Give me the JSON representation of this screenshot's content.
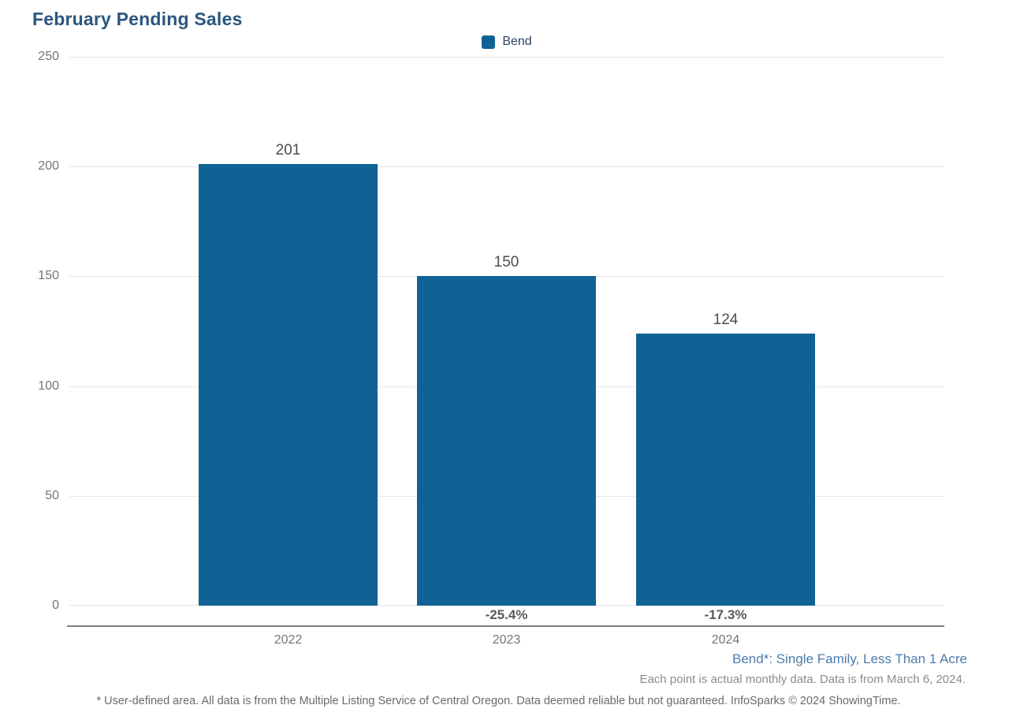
{
  "header": {
    "title": "February Pending Sales"
  },
  "colors": {
    "bar": "#116294",
    "title": "#2a567e",
    "footnote_blue": "#4d7cae",
    "gridline": "#e7e7e7",
    "axis_line": "#7e7e7e"
  },
  "chart_data": {
    "type": "bar",
    "title": "February Pending Sales",
    "categories": [
      "2022",
      "2023",
      "2024"
    ],
    "series": [
      {
        "name": "Bend",
        "values": [
          201,
          150,
          124
        ]
      }
    ],
    "values": [
      201,
      150,
      124
    ],
    "value_labels": [
      "201",
      "150",
      "124"
    ],
    "pct_change": [
      "",
      "-25.4%",
      "-17.3%"
    ],
    "y_ticks": [
      "250",
      "200",
      "150",
      "100",
      "50",
      "0"
    ],
    "ylim": [
      0,
      250
    ],
    "legend": [
      "Bend"
    ],
    "legend_position": "top-center",
    "grid": "horizontal-light",
    "bar_color": "#116294"
  },
  "footnotes": {
    "series_definition": "Bend*: Single Family, Less Than 1 Acre",
    "data_note": "Each point is actual monthly data. Data is from March 6, 2024.",
    "disclaimer": "* User-defined area. All data is from the Multiple Listing Service of Central Oregon. Data deemed reliable but not guaranteed. InfoSparks © 2024 ShowingTime."
  }
}
